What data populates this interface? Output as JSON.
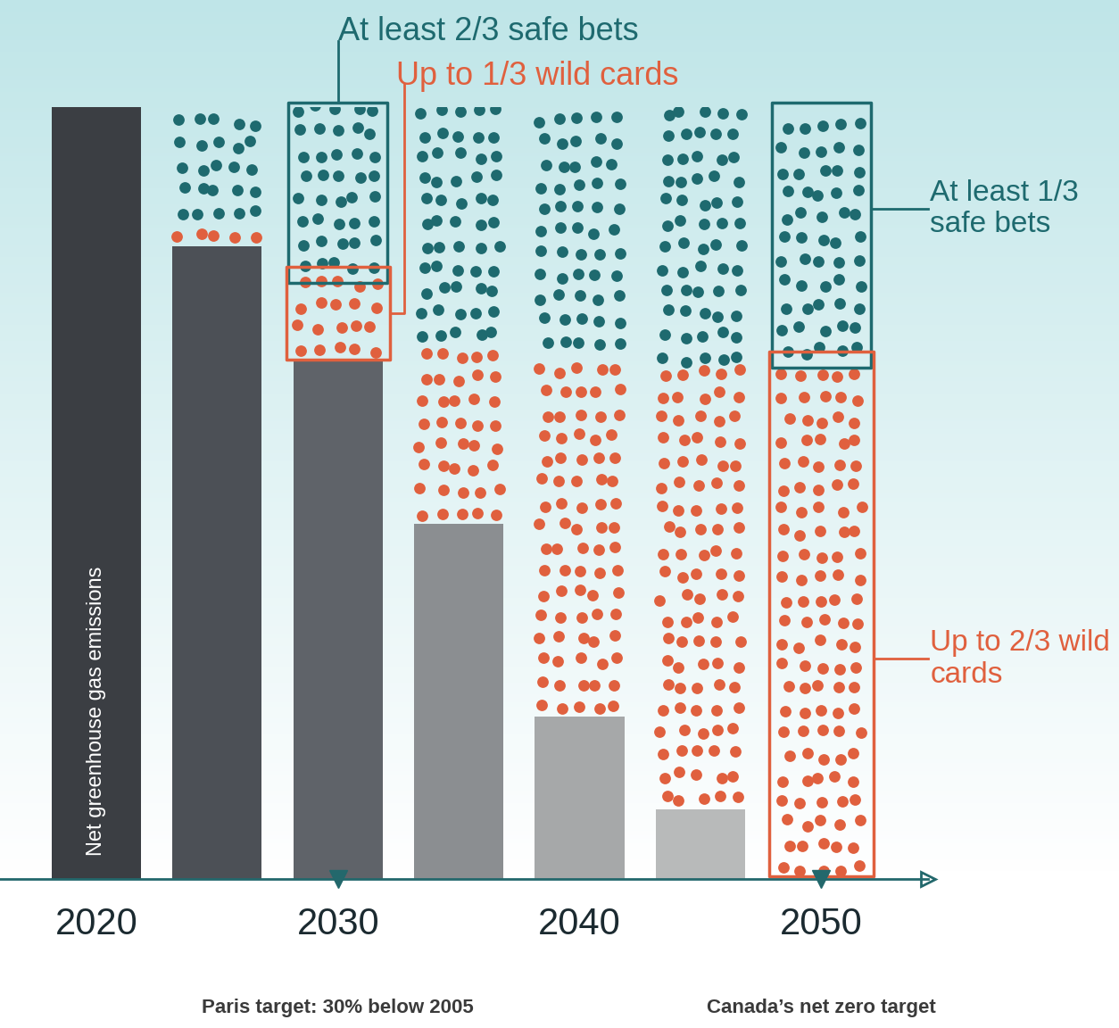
{
  "chart_data": {
    "type": "bar",
    "stacked": true,
    "categories": [
      "2020",
      null,
      "2030",
      null,
      "2040",
      null,
      "2050"
    ],
    "ylim": [
      0,
      100
    ],
    "tick_labels": "x",
    "series": [
      {
        "name": "Net greenhouse gas emissions",
        "type": "bar",
        "colors": [
          "#3b3e43",
          "#4c5056",
          "#5f6369",
          "#8b8e91",
          "#a6a8a9",
          "#b8baba",
          "#cccccc"
        ],
        "values": [
          100,
          82,
          67,
          46,
          21,
          9,
          0
        ]
      },
      {
        "type": "scatter",
        "color": "#e0603e",
        "values": [
          0,
          3,
          11,
          23,
          47,
          57,
          67
        ]
      },
      {
        "type": "scatter",
        "color": "#1e6a6f",
        "values": [
          0,
          15,
          22,
          31,
          32,
          34,
          33
        ]
      }
    ],
    "callouts": [
      {
        "category": "2030",
        "labels": [
          "Up to 1/3 wild cards",
          "At least 2/3 safe bets"
        ],
        "note": "Paris target: 30% below 2005"
      },
      {
        "category": "2050",
        "labels": [
          "Up to 2/3 wild cards",
          "At least 1/3 safe bets"
        ],
        "note": "Canada’s net zero target"
      }
    ]
  }
}
